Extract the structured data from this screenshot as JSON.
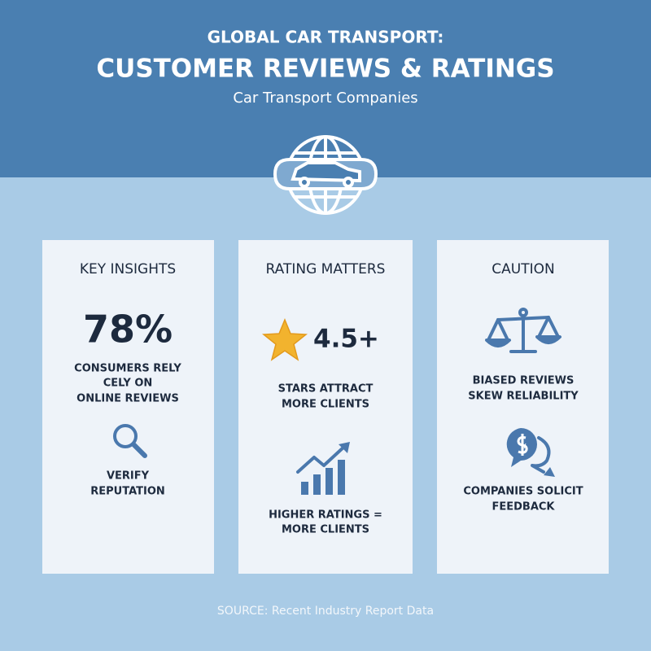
{
  "header": {
    "title_line1": "GLOBAL CAR TRANSPORT:",
    "title_line2": "CUSTOMER REVIEWS & RATINGS",
    "subtitle": "Car Transport Companies"
  },
  "cards": [
    {
      "title": "KEY INSIGHTS",
      "stat": "78%",
      "stat_lines": [
        "CONSUMERS RELY",
        "CELY ON",
        "ONLINE REVIEWS"
      ],
      "item_lines": [
        "VERIFY",
        "REPUTATION"
      ]
    },
    {
      "title": "RATING MATTERS",
      "stat": "4.5+",
      "stat_lines": [
        "STARS ATTRACT",
        "MORE CLIENTS"
      ],
      "item_lines": [
        "HIGHER RATINGS =",
        "MORE CLIENTS"
      ]
    },
    {
      "title": "CAUTION",
      "stat_lines": [
        "BIASED REVIEWS",
        "SKEW RELIABILITY"
      ],
      "item_lines": [
        "COMPANIES SOLICIT",
        "FEEDBACK"
      ]
    }
  ],
  "footer": {
    "source": "SOURCE: Recent Industry Report Data"
  }
}
